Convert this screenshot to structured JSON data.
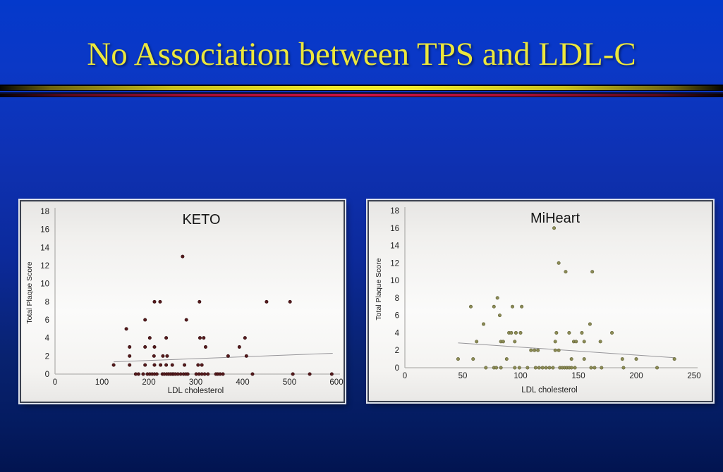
{
  "slide": {
    "title": "No Association between TPS and LDL-C",
    "title_color": "#ece73c",
    "background_top_color": "#0439cb",
    "background_bottom_color": "#021450",
    "separator_colors": {
      "yellow": "#efe72a",
      "red": "#cf1348"
    }
  },
  "chart_data": [
    {
      "type": "scatter",
      "title": "KETO",
      "xlabel": "LDL cholesterol",
      "ylabel": "Total Plaque Score",
      "xlim": [
        0,
        600
      ],
      "ylim": [
        0,
        18
      ],
      "xticks": [
        0,
        100,
        200,
        300,
        400,
        500,
        600
      ],
      "yticks": [
        0,
        2,
        4,
        6,
        8,
        10,
        12,
        14,
        16,
        18
      ],
      "grid": false,
      "legend": false,
      "point_color": "#551a1c",
      "point_stroke": "#2e090b",
      "trendline": {
        "x1": 125,
        "y1": 1.35,
        "x2": 592,
        "y2": 2.3,
        "color": "#97969a"
      },
      "points": [
        [
          272,
          13
        ],
        [
          212,
          8
        ],
        [
          224,
          8
        ],
        [
          308,
          8
        ],
        [
          451,
          8
        ],
        [
          501,
          8
        ],
        [
          192,
          6
        ],
        [
          280,
          6
        ],
        [
          152,
          5
        ],
        [
          202,
          4
        ],
        [
          237,
          4
        ],
        [
          309,
          4
        ],
        [
          317,
          4
        ],
        [
          405,
          4
        ],
        [
          159,
          3
        ],
        [
          192,
          3
        ],
        [
          212,
          3
        ],
        [
          321,
          3
        ],
        [
          393,
          3
        ],
        [
          159,
          2
        ],
        [
          211,
          2
        ],
        [
          230,
          2
        ],
        [
          239,
          2
        ],
        [
          369,
          2
        ],
        [
          408,
          2
        ],
        [
          125,
          1
        ],
        [
          159,
          1
        ],
        [
          192,
          1
        ],
        [
          212,
          1
        ],
        [
          225,
          1
        ],
        [
          237,
          1
        ],
        [
          250,
          1
        ],
        [
          276,
          1
        ],
        [
          305,
          1
        ],
        [
          313,
          1
        ],
        [
          172,
          0
        ],
        [
          178,
          0
        ],
        [
          188,
          0
        ],
        [
          197,
          0
        ],
        [
          202,
          0
        ],
        [
          207,
          0
        ],
        [
          212,
          0
        ],
        [
          217,
          0
        ],
        [
          229,
          0
        ],
        [
          233,
          0
        ],
        [
          238,
          0
        ],
        [
          242,
          0
        ],
        [
          246,
          0
        ],
        [
          250,
          0
        ],
        [
          253,
          0
        ],
        [
          257,
          0
        ],
        [
          262,
          0
        ],
        [
          268,
          0
        ],
        [
          274,
          0
        ],
        [
          279,
          0
        ],
        [
          283,
          0
        ],
        [
          301,
          0
        ],
        [
          307,
          0
        ],
        [
          313,
          0
        ],
        [
          319,
          0
        ],
        [
          326,
          0
        ],
        [
          343,
          0
        ],
        [
          347,
          0
        ],
        [
          352,
          0
        ],
        [
          358,
          0
        ],
        [
          421,
          0
        ],
        [
          507,
          0
        ],
        [
          543,
          0
        ],
        [
          590,
          0
        ]
      ]
    },
    {
      "type": "scatter",
      "title": "MiHeart",
      "xlabel": "LDL cholesterol",
      "ylabel": "Total Plaque Score",
      "xlim": [
        0,
        250
      ],
      "ylim": [
        0,
        18
      ],
      "xticks": [
        0,
        50,
        100,
        150,
        200,
        250
      ],
      "yticks": [
        0,
        2,
        4,
        6,
        8,
        10,
        12,
        14,
        16,
        18
      ],
      "grid": false,
      "legend": false,
      "point_color": "#8b8b55",
      "point_stroke": "#5e5e33",
      "trendline": {
        "x1": 46,
        "y1": 2.85,
        "x2": 233,
        "y2": 1.15,
        "color": "#97969a"
      },
      "points": [
        [
          129,
          16
        ],
        [
          133,
          12
        ],
        [
          139,
          11
        ],
        [
          162,
          11
        ],
        [
          80,
          8
        ],
        [
          57,
          7
        ],
        [
          77,
          7
        ],
        [
          93,
          7
        ],
        [
          101,
          7
        ],
        [
          82,
          6
        ],
        [
          68,
          5
        ],
        [
          160,
          5
        ],
        [
          90,
          4
        ],
        [
          92,
          4
        ],
        [
          96,
          4
        ],
        [
          100,
          4
        ],
        [
          131,
          4
        ],
        [
          142,
          4
        ],
        [
          153,
          4
        ],
        [
          179,
          4
        ],
        [
          62,
          3
        ],
        [
          83,
          3
        ],
        [
          85,
          3
        ],
        [
          95,
          3
        ],
        [
          130,
          3
        ],
        [
          146,
          3
        ],
        [
          148,
          3
        ],
        [
          155,
          3
        ],
        [
          169,
          3
        ],
        [
          109,
          2
        ],
        [
          112,
          2
        ],
        [
          115,
          2
        ],
        [
          130,
          2
        ],
        [
          133,
          2
        ],
        [
          46,
          1
        ],
        [
          59,
          1
        ],
        [
          88,
          1
        ],
        [
          144,
          1
        ],
        [
          155,
          1
        ],
        [
          188,
          1
        ],
        [
          200,
          1
        ],
        [
          233,
          1
        ],
        [
          70,
          0
        ],
        [
          77,
          0
        ],
        [
          79,
          0
        ],
        [
          83,
          0
        ],
        [
          95,
          0
        ],
        [
          99,
          0
        ],
        [
          106,
          0
        ],
        [
          113,
          0
        ],
        [
          116,
          0
        ],
        [
          119,
          0
        ],
        [
          122,
          0
        ],
        [
          125,
          0
        ],
        [
          128,
          0
        ],
        [
          134,
          0
        ],
        [
          136,
          0
        ],
        [
          138,
          0
        ],
        [
          140,
          0
        ],
        [
          142,
          0
        ],
        [
          144,
          0
        ],
        [
          147,
          0
        ],
        [
          161,
          0
        ],
        [
          164,
          0
        ],
        [
          170,
          0
        ],
        [
          189,
          0
        ],
        [
          218,
          0
        ]
      ]
    }
  ]
}
